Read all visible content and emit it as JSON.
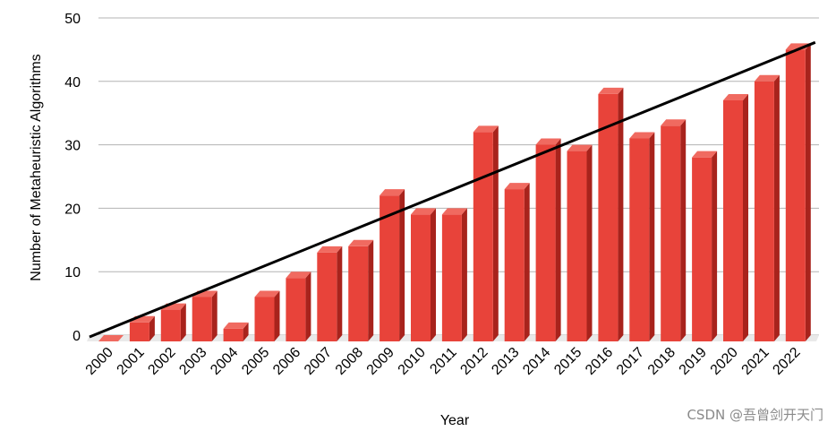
{
  "chart_data": {
    "type": "bar",
    "categories": [
      "2000",
      "2001",
      "2002",
      "2003",
      "2004",
      "2005",
      "2006",
      "2007",
      "2008",
      "2009",
      "2010",
      "2011",
      "2012",
      "2013",
      "2014",
      "2015",
      "2016",
      "2017",
      "2018",
      "2019",
      "2020",
      "2021",
      "2022"
    ],
    "values": [
      0,
      3,
      5,
      7,
      2,
      7,
      10,
      14,
      15,
      23,
      20,
      20,
      33,
      24,
      31,
      30,
      39,
      32,
      34,
      29,
      38,
      41,
      46
    ],
    "xlabel": "Year",
    "ylabel": "Number of Metaheuristic Algorithms",
    "ylim": [
      0,
      50
    ],
    "yticks": [
      0,
      10,
      20,
      30,
      40,
      50
    ],
    "grid": true,
    "trendline": {
      "x_start": "2000",
      "y_start": 0,
      "x_end": "2022",
      "y_end": 46
    },
    "colors": {
      "bar_front": "#e8433a",
      "bar_top": "#f06a60",
      "bar_side": "#a8231c",
      "grid": "#b3b3b3",
      "trend": "#000000"
    }
  },
  "watermark": "CSDN @吾曾剑开天门"
}
